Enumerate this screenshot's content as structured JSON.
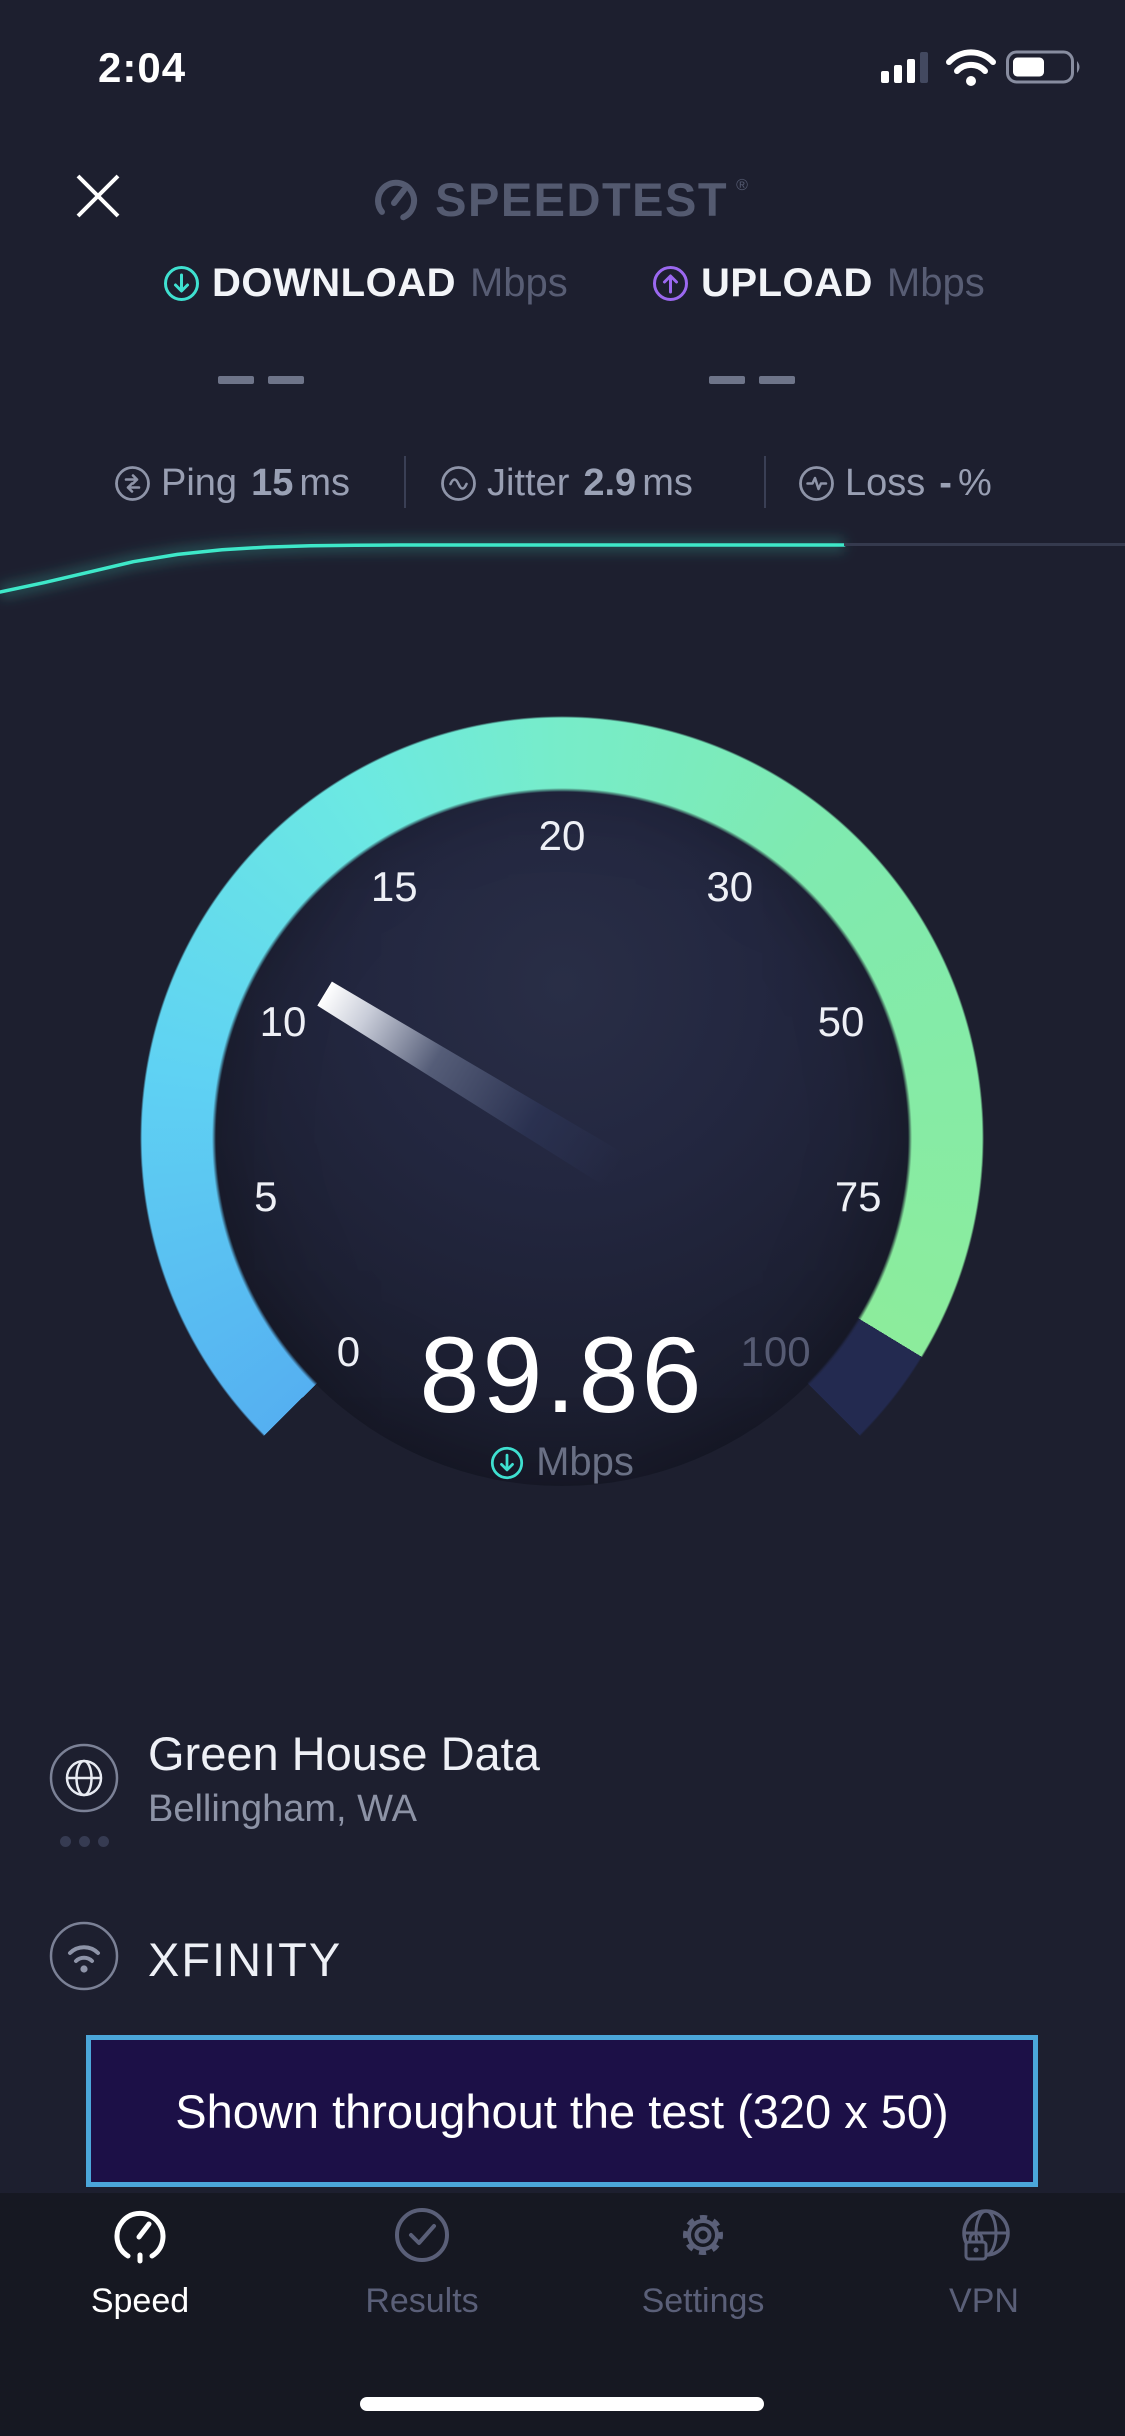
{
  "status_bar": {
    "time": "2:04",
    "battery_fill_ratio": 0.5
  },
  "header": {
    "logo_text": "SPEEDTEST",
    "registered_mark": "®"
  },
  "metrics": {
    "download": {
      "label": "DOWNLOAD",
      "unit": "Mbps",
      "value_placeholder": "— —"
    },
    "upload": {
      "label": "UPLOAD",
      "unit": "Mbps",
      "value_placeholder": "— —"
    }
  },
  "latency": {
    "ping": {
      "label": "Ping",
      "value": "15",
      "unit": "ms"
    },
    "jitter": {
      "label": "Jitter",
      "value": "2.9",
      "unit": "ms"
    },
    "loss": {
      "label": "Loss",
      "value": "-",
      "unit": "%"
    }
  },
  "gauge": {
    "scale_labels": [
      "0",
      "5",
      "10",
      "15",
      "20",
      "30",
      "50",
      "75",
      "100"
    ],
    "scale_values": [
      0,
      5,
      10,
      15,
      20,
      30,
      50,
      75,
      100
    ],
    "value": "89.86",
    "current_value": 89.86,
    "unit": "Mbps"
  },
  "chart_data": {
    "type": "line",
    "title": "download speed over test time",
    "values": [
      0,
      18,
      38,
      58,
      72,
      81,
      86,
      88.5,
      89.5,
      90,
      90,
      90,
      90,
      90,
      90,
      90,
      90,
      90,
      90,
      90
    ],
    "ymax": 100,
    "color": "#3EE8C9",
    "legend": "none",
    "grid": "off"
  },
  "server": {
    "name": "Green House Data",
    "location": "Bellingham, WA"
  },
  "isp": {
    "name": "XFINITY"
  },
  "ad_banner": {
    "text": "Shown throughout the test (320 x 50)"
  },
  "tab_bar": {
    "items": [
      {
        "label": "Speed",
        "icon": "gauge-icon",
        "active": true
      },
      {
        "label": "Results",
        "icon": "check-circle-icon",
        "active": false
      },
      {
        "label": "Settings",
        "icon": "gear-icon",
        "active": false
      },
      {
        "label": "VPN",
        "icon": "globe-lock-icon",
        "active": false
      }
    ]
  },
  "colors": {
    "background": "#1D1F2F",
    "accent_teal": "#3FE0D0",
    "accent_purple": "#9B68F0",
    "gauge_start_blue": "#55B0F1",
    "gauge_end_green": "#8CEC9C",
    "gauge_remainder": "#232A50",
    "banner_border": "#4BA6DA",
    "banner_bg": "#1C1047",
    "text_dim": "#575C73",
    "text_gray": "#999FB3"
  }
}
